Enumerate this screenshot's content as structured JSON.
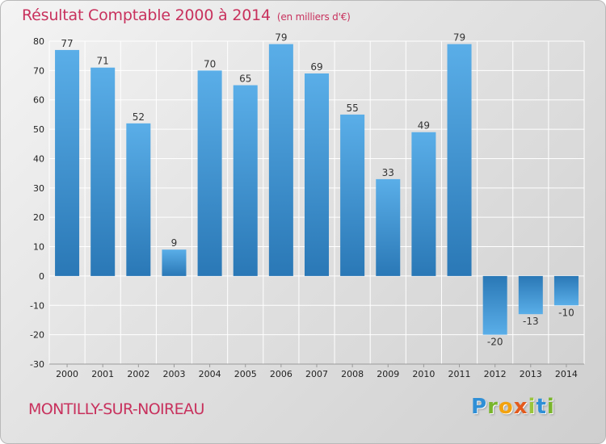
{
  "header": {
    "title": "Résultat Comptable 2000 à 2014",
    "subtitle": "(en milliers d'€)"
  },
  "footer": {
    "town": "MONTILLY-SUR-NOIREAU",
    "brand_letters": [
      "P",
      "r",
      "o",
      "x",
      "i",
      "t",
      "i"
    ]
  },
  "colors": {
    "accent": "#c8315d",
    "bar_top": "#5aaee8",
    "bar_bottom": "#2a78b6",
    "grid": "#ffffff"
  },
  "chart_data": {
    "type": "bar",
    "title": "Résultat Comptable 2000 à 2014",
    "ylabel": "en milliers d'€",
    "xlabel": "",
    "categories": [
      "2000",
      "2001",
      "2002",
      "2003",
      "2004",
      "2005",
      "2006",
      "2007",
      "2008",
      "2009",
      "2010",
      "2011",
      "2012",
      "2013",
      "2014"
    ],
    "values": [
      77,
      71,
      52,
      9,
      70,
      65,
      79,
      69,
      55,
      33,
      49,
      79,
      -20,
      -13,
      -10
    ],
    "ylim": [
      -30,
      80
    ],
    "yticks": [
      -30,
      -20,
      -10,
      0,
      10,
      20,
      30,
      40,
      50,
      60,
      70,
      80
    ],
    "grid": true
  }
}
